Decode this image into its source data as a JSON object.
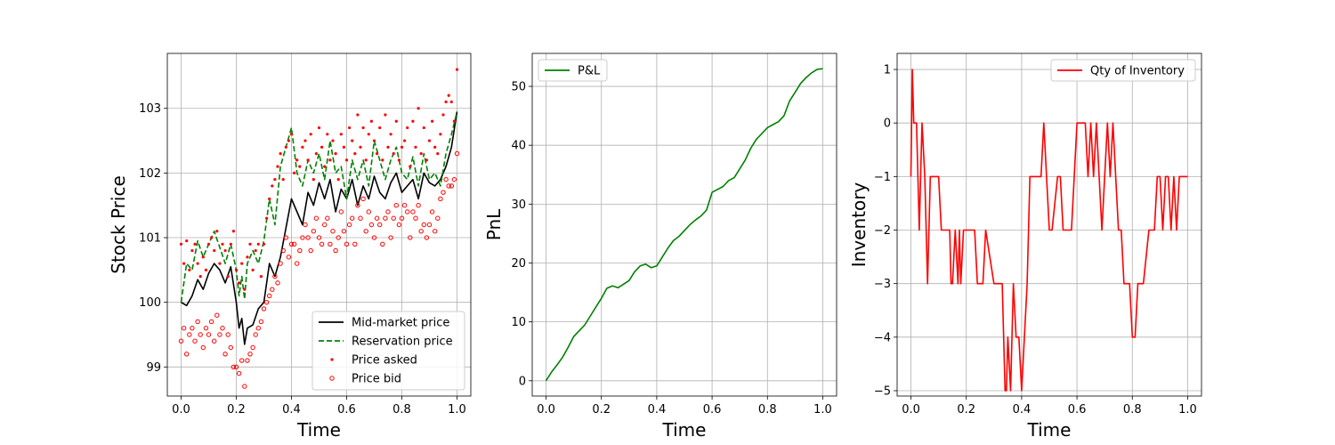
{
  "chart_data": [
    {
      "type": "line",
      "xlabel": "Time",
      "ylabel": "Stock Price",
      "xlim": [
        -0.05,
        1.05
      ],
      "ylim": [
        98.55,
        103.85
      ],
      "xticks": [
        "0.0",
        "0.2",
        "0.4",
        "0.6",
        "0.8",
        "1.0"
      ],
      "yticks": [
        "99",
        "100",
        "101",
        "102",
        "103"
      ],
      "grid": true,
      "legend_position": "lower-right",
      "series": [
        {
          "name": "Mid-market price",
          "style": "line",
          "color": "#000000",
          "x": [
            0.0,
            0.02,
            0.04,
            0.06,
            0.08,
            0.1,
            0.12,
            0.14,
            0.16,
            0.18,
            0.2,
            0.21,
            0.22,
            0.23,
            0.24,
            0.26,
            0.28,
            0.3,
            0.32,
            0.34,
            0.36,
            0.38,
            0.4,
            0.42,
            0.44,
            0.46,
            0.48,
            0.5,
            0.52,
            0.54,
            0.56,
            0.58,
            0.6,
            0.62,
            0.64,
            0.66,
            0.68,
            0.7,
            0.72,
            0.74,
            0.76,
            0.78,
            0.8,
            0.82,
            0.84,
            0.86,
            0.88,
            0.9,
            0.92,
            0.94,
            0.96,
            0.98,
            1.0
          ],
          "values": [
            100.0,
            99.95,
            100.1,
            100.35,
            100.2,
            100.45,
            100.6,
            100.5,
            100.3,
            100.55,
            100.0,
            99.6,
            99.75,
            99.35,
            99.6,
            99.65,
            99.9,
            100.0,
            100.6,
            100.4,
            100.7,
            101.15,
            101.6,
            101.4,
            101.2,
            101.7,
            101.5,
            101.85,
            101.6,
            101.9,
            101.4,
            101.75,
            101.6,
            101.9,
            101.5,
            101.8,
            101.6,
            101.95,
            101.7,
            101.6,
            101.85,
            102.0,
            101.7,
            101.8,
            101.9,
            101.6,
            102.0,
            101.85,
            101.8,
            101.9,
            102.1,
            102.4,
            102.95
          ]
        },
        {
          "name": "Reservation price",
          "style": "dashed",
          "color": "#008000",
          "x": [
            0.0,
            0.02,
            0.04,
            0.06,
            0.08,
            0.1,
            0.12,
            0.14,
            0.16,
            0.18,
            0.2,
            0.21,
            0.22,
            0.23,
            0.24,
            0.26,
            0.28,
            0.3,
            0.32,
            0.34,
            0.36,
            0.38,
            0.4,
            0.42,
            0.44,
            0.46,
            0.48,
            0.5,
            0.52,
            0.54,
            0.56,
            0.58,
            0.6,
            0.62,
            0.64,
            0.66,
            0.68,
            0.7,
            0.72,
            0.74,
            0.76,
            0.78,
            0.8,
            0.82,
            0.84,
            0.86,
            0.88,
            0.9,
            0.92,
            0.94,
            0.96,
            0.98,
            1.0
          ],
          "values": [
            100.0,
            100.6,
            100.5,
            100.95,
            100.7,
            100.9,
            101.1,
            100.85,
            100.6,
            100.9,
            100.5,
            100.1,
            100.4,
            100.05,
            100.6,
            100.8,
            100.6,
            100.95,
            101.6,
            101.2,
            102.1,
            102.4,
            102.7,
            102.0,
            101.8,
            102.2,
            102.0,
            102.3,
            101.9,
            102.5,
            102.0,
            102.1,
            101.6,
            102.2,
            101.9,
            102.2,
            101.8,
            102.5,
            102.2,
            101.9,
            102.2,
            102.4,
            102.0,
            101.9,
            102.25,
            101.8,
            102.3,
            101.9,
            102.0,
            101.8,
            102.3,
            102.6,
            102.95
          ]
        },
        {
          "name": "Price asked",
          "style": "dots",
          "color": "#ff0000",
          "x": [
            0.0,
            0.01,
            0.02,
            0.03,
            0.04,
            0.05,
            0.06,
            0.07,
            0.08,
            0.09,
            0.1,
            0.11,
            0.12,
            0.13,
            0.14,
            0.15,
            0.16,
            0.17,
            0.18,
            0.19,
            0.2,
            0.21,
            0.22,
            0.23,
            0.24,
            0.25,
            0.26,
            0.27,
            0.28,
            0.29,
            0.3,
            0.31,
            0.32,
            0.33,
            0.34,
            0.35,
            0.36,
            0.37,
            0.38,
            0.39,
            0.4,
            0.41,
            0.42,
            0.43,
            0.44,
            0.45,
            0.46,
            0.47,
            0.48,
            0.49,
            0.5,
            0.51,
            0.52,
            0.53,
            0.54,
            0.55,
            0.56,
            0.57,
            0.58,
            0.59,
            0.6,
            0.61,
            0.62,
            0.63,
            0.64,
            0.65,
            0.66,
            0.67,
            0.68,
            0.69,
            0.7,
            0.71,
            0.72,
            0.73,
            0.74,
            0.75,
            0.76,
            0.77,
            0.78,
            0.79,
            0.8,
            0.81,
            0.82,
            0.83,
            0.84,
            0.85,
            0.86,
            0.87,
            0.88,
            0.89,
            0.9,
            0.91,
            0.92,
            0.93,
            0.94,
            0.95,
            0.96,
            0.97,
            0.98,
            0.99,
            1.0
          ],
          "values": [
            100.9,
            100.6,
            100.95,
            100.5,
            100.8,
            100.9,
            100.6,
            100.4,
            100.7,
            100.5,
            100.9,
            101.0,
            100.8,
            101.1,
            100.6,
            100.9,
            100.8,
            100.4,
            100.9,
            101.1,
            100.5,
            100.3,
            100.6,
            100.2,
            100.7,
            100.9,
            100.5,
            100.8,
            100.9,
            100.4,
            100.9,
            101.3,
            101.6,
            101.8,
            101.9,
            102.1,
            102.3,
            101.9,
            102.4,
            102.5,
            102.6,
            102.0,
            102.2,
            102.1,
            102.4,
            102.5,
            102.2,
            102.6,
            101.9,
            102.3,
            102.7,
            102.4,
            102.1,
            102.6,
            102.2,
            102.5,
            102.3,
            101.9,
            102.6,
            102.4,
            102.2,
            102.7,
            102.5,
            102.3,
            102.9,
            102.4,
            102.7,
            102.2,
            102.6,
            102.8,
            102.5,
            102.3,
            102.7,
            102.2,
            102.9,
            102.4,
            102.6,
            102.3,
            102.8,
            102.2,
            102.4,
            102.5,
            102.7,
            102.1,
            102.8,
            102.4,
            103.0,
            102.3,
            102.7,
            102.2,
            102.5,
            102.8,
            102.4,
            102.3,
            102.6,
            102.9,
            103.1,
            103.2,
            103.1,
            102.8,
            103.6
          ]
        },
        {
          "name": "Price bid",
          "style": "circles",
          "color": "#ff0000",
          "x": [
            0.0,
            0.01,
            0.02,
            0.03,
            0.04,
            0.05,
            0.06,
            0.07,
            0.08,
            0.09,
            0.1,
            0.11,
            0.12,
            0.13,
            0.14,
            0.15,
            0.16,
            0.17,
            0.18,
            0.19,
            0.2,
            0.21,
            0.22,
            0.23,
            0.24,
            0.25,
            0.26,
            0.27,
            0.28,
            0.29,
            0.3,
            0.31,
            0.32,
            0.33,
            0.34,
            0.35,
            0.36,
            0.37,
            0.38,
            0.39,
            0.4,
            0.41,
            0.42,
            0.43,
            0.44,
            0.45,
            0.46,
            0.47,
            0.48,
            0.49,
            0.5,
            0.51,
            0.52,
            0.53,
            0.54,
            0.55,
            0.56,
            0.57,
            0.58,
            0.59,
            0.6,
            0.61,
            0.62,
            0.63,
            0.64,
            0.65,
            0.66,
            0.67,
            0.68,
            0.69,
            0.7,
            0.71,
            0.72,
            0.73,
            0.74,
            0.75,
            0.76,
            0.77,
            0.78,
            0.79,
            0.8,
            0.81,
            0.82,
            0.83,
            0.84,
            0.85,
            0.86,
            0.87,
            0.88,
            0.89,
            0.9,
            0.91,
            0.92,
            0.93,
            0.94,
            0.95,
            0.96,
            0.97,
            0.98,
            0.99,
            1.0
          ],
          "values": [
            99.4,
            99.6,
            99.2,
            99.5,
            99.6,
            99.4,
            99.7,
            99.5,
            99.3,
            99.6,
            99.5,
            99.7,
            99.4,
            99.8,
            99.5,
            99.6,
            99.2,
            99.5,
            99.3,
            99.0,
            99.0,
            98.9,
            99.1,
            98.7,
            99.1,
            99.2,
            99.3,
            99.5,
            99.6,
            99.7,
            99.9,
            100.0,
            100.1,
            100.2,
            100.4,
            100.3,
            100.6,
            100.8,
            101.0,
            100.7,
            100.9,
            100.9,
            100.6,
            100.8,
            101.0,
            101.2,
            101.0,
            100.8,
            101.1,
            101.3,
            101.0,
            100.9,
            101.2,
            101.3,
            100.9,
            101.1,
            100.8,
            101.0,
            101.4,
            101.1,
            100.9,
            101.2,
            101.3,
            100.9,
            101.5,
            101.3,
            101.6,
            101.1,
            101.4,
            101.2,
            101.0,
            101.3,
            101.2,
            100.9,
            101.3,
            101.4,
            101.0,
            101.3,
            101.5,
            101.2,
            101.3,
            101.5,
            101.4,
            101.0,
            101.4,
            101.3,
            101.5,
            101.1,
            101.2,
            101.0,
            101.2,
            101.4,
            101.1,
            101.3,
            101.6,
            101.7,
            101.9,
            101.8,
            101.8,
            101.9,
            102.3
          ]
        }
      ]
    },
    {
      "type": "line",
      "xlabel": "Time",
      "ylabel": "PnL",
      "xlim": [
        -0.05,
        1.05
      ],
      "ylim": [
        -2.6,
        55.6
      ],
      "xticks": [
        "0.0",
        "0.2",
        "0.4",
        "0.6",
        "0.8",
        "1.0"
      ],
      "yticks": [
        "0",
        "10",
        "20",
        "30",
        "40",
        "50"
      ],
      "grid": true,
      "legend_position": "top-left",
      "series": [
        {
          "name": "P&L",
          "color": "#008000",
          "x": [
            0.0,
            0.02,
            0.04,
            0.06,
            0.08,
            0.1,
            0.12,
            0.14,
            0.16,
            0.18,
            0.2,
            0.22,
            0.24,
            0.26,
            0.28,
            0.3,
            0.32,
            0.34,
            0.36,
            0.38,
            0.4,
            0.42,
            0.44,
            0.46,
            0.48,
            0.5,
            0.52,
            0.54,
            0.56,
            0.58,
            0.6,
            0.62,
            0.64,
            0.66,
            0.68,
            0.7,
            0.72,
            0.74,
            0.76,
            0.78,
            0.8,
            0.82,
            0.84,
            0.86,
            0.88,
            0.9,
            0.92,
            0.94,
            0.96,
            0.98,
            1.0
          ],
          "values": [
            0.0,
            1.5,
            2.7,
            4.0,
            5.7,
            7.5,
            8.5,
            9.5,
            11.0,
            12.5,
            14.0,
            15.7,
            16.1,
            15.8,
            16.4,
            17.0,
            18.5,
            19.5,
            19.8,
            19.2,
            19.5,
            21.0,
            22.5,
            23.8,
            24.5,
            25.5,
            26.5,
            27.3,
            28.0,
            29.0,
            32.0,
            32.5,
            33.0,
            34.0,
            34.5,
            36.0,
            37.5,
            39.5,
            41.0,
            42.0,
            43.0,
            43.5,
            44.0,
            45.0,
            47.5,
            49.0,
            50.5,
            51.5,
            52.3,
            52.9,
            53.0
          ]
        }
      ]
    },
    {
      "type": "line",
      "xlabel": "Time",
      "ylabel": "Inventory",
      "xlim": [
        -0.05,
        1.05
      ],
      "ylim": [
        -5.1,
        1.3
      ],
      "xticks": [
        "0.0",
        "0.2",
        "0.4",
        "0.6",
        "0.8",
        "1.0"
      ],
      "yticks": [
        "1",
        "0",
        "−1",
        "−2",
        "−3",
        "−4",
        "−5"
      ],
      "grid": true,
      "legend_position": "top-right",
      "series": [
        {
          "name": "Qty of Inventory",
          "color": "#ff0000",
          "x": [
            0.0,
            0.005,
            0.01,
            0.02,
            0.03,
            0.035,
            0.04,
            0.05,
            0.06,
            0.07,
            0.08,
            0.09,
            0.1,
            0.11,
            0.115,
            0.12,
            0.14,
            0.145,
            0.15,
            0.16,
            0.17,
            0.175,
            0.18,
            0.19,
            0.2,
            0.21,
            0.22,
            0.23,
            0.24,
            0.25,
            0.26,
            0.27,
            0.3,
            0.31,
            0.33,
            0.34,
            0.345,
            0.35,
            0.36,
            0.37,
            0.38,
            0.39,
            0.4,
            0.41,
            0.42,
            0.43,
            0.44,
            0.46,
            0.47,
            0.48,
            0.49,
            0.5,
            0.51,
            0.53,
            0.54,
            0.55,
            0.56,
            0.58,
            0.59,
            0.6,
            0.62,
            0.63,
            0.64,
            0.65,
            0.66,
            0.67,
            0.68,
            0.69,
            0.7,
            0.71,
            0.72,
            0.73,
            0.74,
            0.75,
            0.76,
            0.77,
            0.78,
            0.79,
            0.8,
            0.81,
            0.82,
            0.83,
            0.84,
            0.86,
            0.87,
            0.88,
            0.89,
            0.9,
            0.91,
            0.92,
            0.93,
            0.94,
            0.95,
            0.96,
            0.97,
            0.98,
            0.99,
            1.0
          ],
          "values": [
            -1,
            1,
            0,
            0,
            -2,
            -1,
            0,
            -1,
            -3,
            -1,
            -1,
            -1,
            -1,
            -2,
            -2,
            -2,
            -2,
            -3,
            -3,
            -2,
            -3,
            -2,
            -3,
            -2,
            -2,
            -2,
            -2,
            -2,
            -3,
            -3,
            -3,
            -2,
            -3,
            -3,
            -3,
            -5,
            -5,
            -4,
            -5,
            -3,
            -4,
            -4,
            -5,
            -4,
            -3,
            -1,
            -1,
            -1,
            -1,
            0,
            -1,
            -2,
            -2,
            -1,
            -1,
            -2,
            -2,
            -2,
            -1,
            0,
            0,
            0,
            -1,
            0,
            -1,
            0,
            -1,
            -2,
            -1,
            0,
            -1,
            0,
            -1,
            -2,
            -2,
            -3,
            -3,
            -3,
            -4,
            -4,
            -3,
            -3,
            -3,
            -2,
            -2,
            -2,
            -1,
            -1,
            -2,
            -1,
            -1,
            -2,
            -1,
            -2,
            -1,
            -1,
            -1,
            -1
          ]
        }
      ]
    }
  ]
}
